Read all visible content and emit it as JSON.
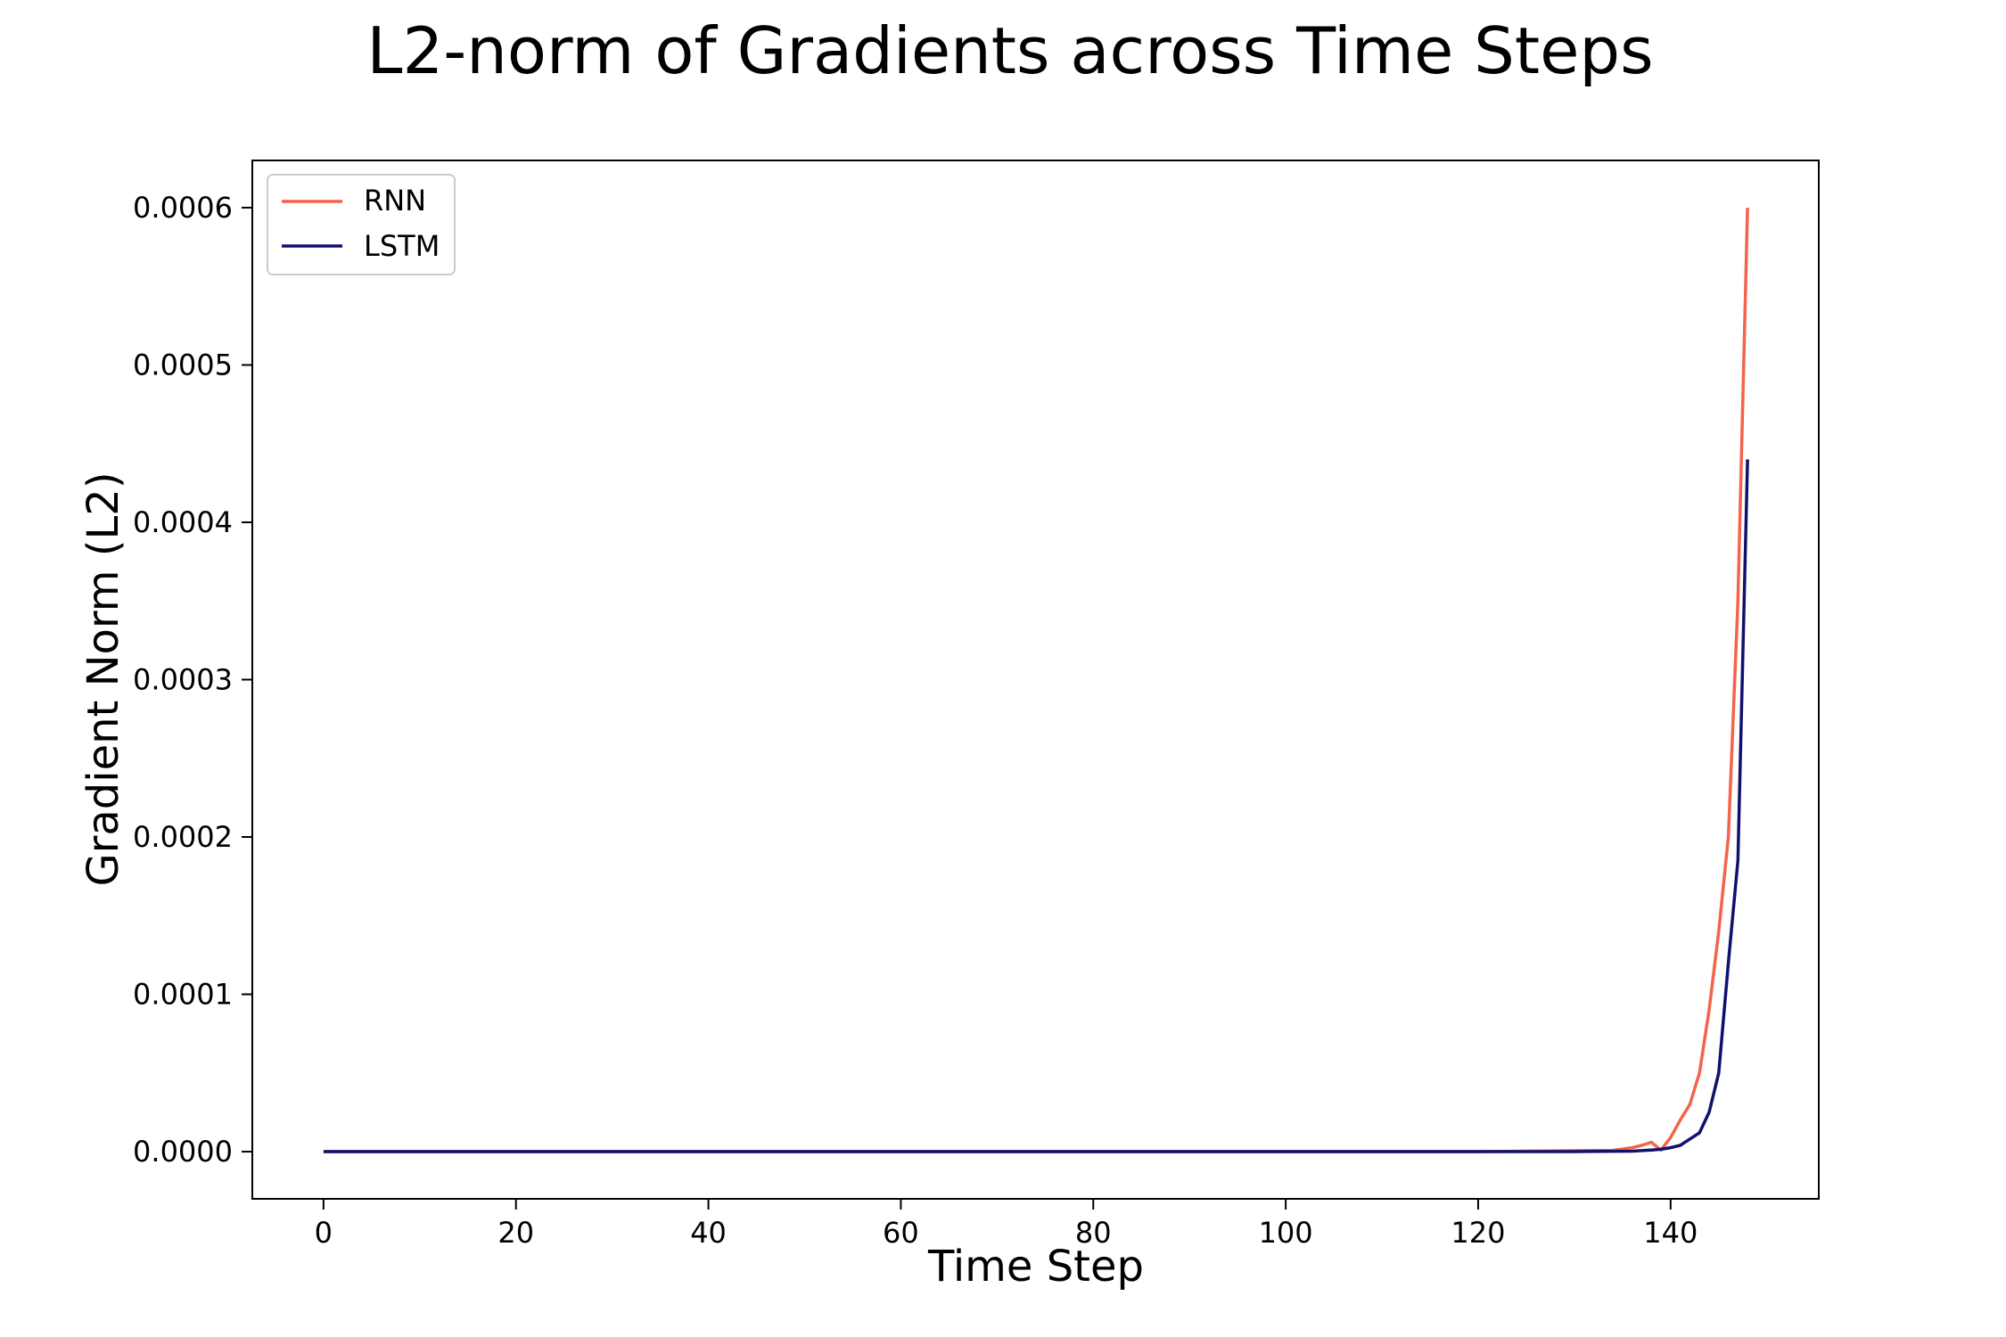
{
  "chart_data": {
    "type": "line",
    "title": "L2-norm of Gradients across Time Steps",
    "xlabel": "Time Step",
    "ylabel": "Gradient Norm (L2)",
    "xlim": [
      -7.4,
      155.4
    ],
    "ylim": [
      -3e-05,
      0.00063
    ],
    "xticks": [
      0,
      20,
      40,
      60,
      80,
      100,
      120,
      140
    ],
    "xtick_labels": [
      "0",
      "20",
      "40",
      "60",
      "80",
      "100",
      "120",
      "140"
    ],
    "yticks": [
      0,
      0.0001,
      0.0002,
      0.0003,
      0.0004,
      0.0005,
      0.0006
    ],
    "ytick_labels": [
      "0.0000",
      "0.0001",
      "0.0002",
      "0.0003",
      "0.0004",
      "0.0005",
      "0.0006"
    ],
    "grid": false,
    "legend_position": "upper-left",
    "series": [
      {
        "name": "RNN",
        "color": "#f4634a",
        "x": [
          0,
          120,
          134,
          136,
          137,
          138,
          139,
          140,
          141,
          142,
          143,
          144,
          145,
          146,
          147,
          148
        ],
        "y": [
          0,
          0,
          8e-07,
          2.5e-06,
          4e-06,
          6e-06,
          1e-06,
          9e-06,
          2e-05,
          3e-05,
          5e-05,
          9e-05,
          0.00014,
          0.0002,
          0.00035,
          0.0006
        ]
      },
      {
        "name": "LSTM",
        "color": "#10106e",
        "x": [
          0,
          130,
          136,
          138,
          139,
          140,
          141,
          142,
          143,
          144,
          145,
          146,
          147,
          148
        ],
        "y": [
          0,
          0,
          3e-07,
          1e-06,
          1.5e-06,
          2.5e-06,
          4e-06,
          8e-06,
          1.2e-05,
          2.5e-05,
          5e-05,
          0.00012,
          0.000185,
          0.00044
        ]
      }
    ]
  }
}
